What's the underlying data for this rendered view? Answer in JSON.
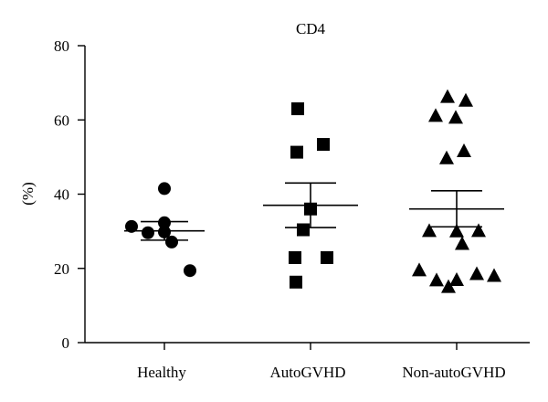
{
  "chart_data": {
    "type": "scatter",
    "title": "CD4",
    "ylabel": "(%)",
    "xlabel": "",
    "ylim": [
      0,
      80
    ],
    "yticks": [
      0,
      20,
      40,
      60,
      80
    ],
    "grid": false,
    "categories": [
      "Healthy",
      "AutoGVHD",
      "Non-autoGVHD"
    ],
    "series": [
      {
        "category": "Healthy",
        "marker": "circle",
        "values": [
          41.5,
          32.3,
          31.3,
          29.8,
          29.6,
          27.1,
          19.4
        ],
        "mean": 30.1,
        "sem_low": 27.6,
        "sem_high": 32.6
      },
      {
        "category": "AutoGVHD",
        "marker": "square",
        "values": [
          63.0,
          53.4,
          51.3,
          36.0,
          30.4,
          22.9,
          22.9,
          16.3
        ],
        "mean": 37.0,
        "sem_low": 31.0,
        "sem_high": 43.0
      },
      {
        "category": "Non-autoGVHD",
        "marker": "triangle",
        "values": [
          66.3,
          65.3,
          61.2,
          60.7,
          51.7,
          49.8,
          30.2,
          30.1,
          30.2,
          26.7,
          19.6,
          18.6,
          18.1,
          17.0,
          16.9,
          15.1
        ],
        "mean": 36.0,
        "sem_low": 31.2,
        "sem_high": 40.9
      }
    ]
  },
  "colors": {
    "axis": "#000000",
    "marker": "#000000",
    "background": "#ffffff"
  }
}
